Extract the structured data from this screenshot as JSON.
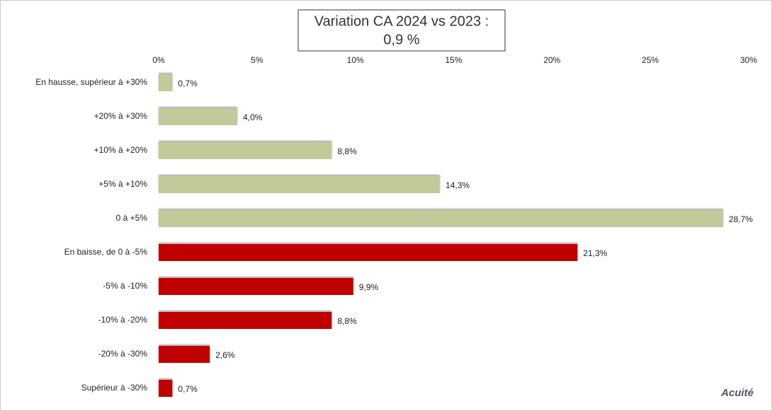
{
  "chart_data": {
    "type": "bar",
    "orientation": "horizontal",
    "title": [
      "Variation CA 2024 vs 2023 :",
      "0,9 %"
    ],
    "categories": [
      "En hausse, supérieur à +30%",
      "+20% à +30%",
      "+10% à +20%",
      "+5% à +10%",
      "0 à +5%",
      "En baisse, de 0 à -5%",
      "-5% à -10%",
      "-10% à -20%",
      "-20% à -30%",
      "Supérieur à -30%"
    ],
    "values": [
      0.7,
      4.0,
      8.8,
      14.3,
      28.7,
      21.3,
      9.9,
      8.8,
      2.6,
      0.7
    ],
    "value_labels": [
      "0,7%",
      "4,0%",
      "8,8%",
      "14,3%",
      "28,7%",
      "21,3%",
      "9,9%",
      "8,8%",
      "2,6%",
      "0,7%"
    ],
    "colors": [
      "#c4c99a",
      "#c4c99a",
      "#c4c99a",
      "#c4c99a",
      "#c4c99a",
      "#c00000",
      "#c00000",
      "#c00000",
      "#c00000",
      "#c00000"
    ],
    "xlim": [
      0,
      30
    ],
    "xticks": [
      {
        "value": 0,
        "label": "0%"
      },
      {
        "value": 5,
        "label": "5%"
      },
      {
        "value": 10,
        "label": "10%"
      },
      {
        "value": 15,
        "label": "15%"
      },
      {
        "value": 20,
        "label": "20%"
      },
      {
        "value": 25,
        "label": "25%"
      },
      {
        "value": 30,
        "label": "30%"
      }
    ],
    "source": "Acuité"
  }
}
